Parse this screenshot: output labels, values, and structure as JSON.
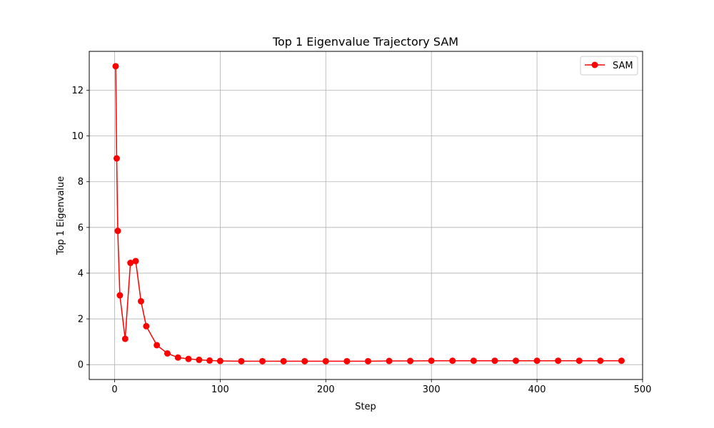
{
  "chart_data": {
    "type": "line",
    "title": "Top 1 Eigenvalue Trajectory SAM",
    "xlabel": "Step",
    "ylabel": "Top 1 Eigenvalue",
    "xlim": [
      -24,
      500
    ],
    "ylim": [
      -0.65,
      13.7
    ],
    "xticks": [
      0,
      100,
      200,
      300,
      400,
      500
    ],
    "yticks": [
      0,
      2,
      4,
      6,
      8,
      10,
      12
    ],
    "grid": true,
    "legend_position": "top-right",
    "series": [
      {
        "name": "SAM",
        "color": "#ff0000",
        "marker": "circle",
        "x": [
          1,
          2,
          3,
          5,
          10,
          15,
          20,
          25,
          30,
          40,
          50,
          60,
          70,
          80,
          90,
          100,
          120,
          140,
          160,
          180,
          200,
          220,
          240,
          260,
          280,
          300,
          320,
          340,
          360,
          380,
          400,
          420,
          440,
          460,
          480
        ],
        "y": [
          13.05,
          9.02,
          5.85,
          3.03,
          1.13,
          4.45,
          4.53,
          2.77,
          1.68,
          0.85,
          0.49,
          0.31,
          0.25,
          0.21,
          0.18,
          0.16,
          0.15,
          0.15,
          0.15,
          0.15,
          0.15,
          0.15,
          0.15,
          0.16,
          0.16,
          0.17,
          0.17,
          0.17,
          0.17,
          0.17,
          0.17,
          0.17,
          0.17,
          0.17,
          0.17
        ]
      }
    ]
  }
}
